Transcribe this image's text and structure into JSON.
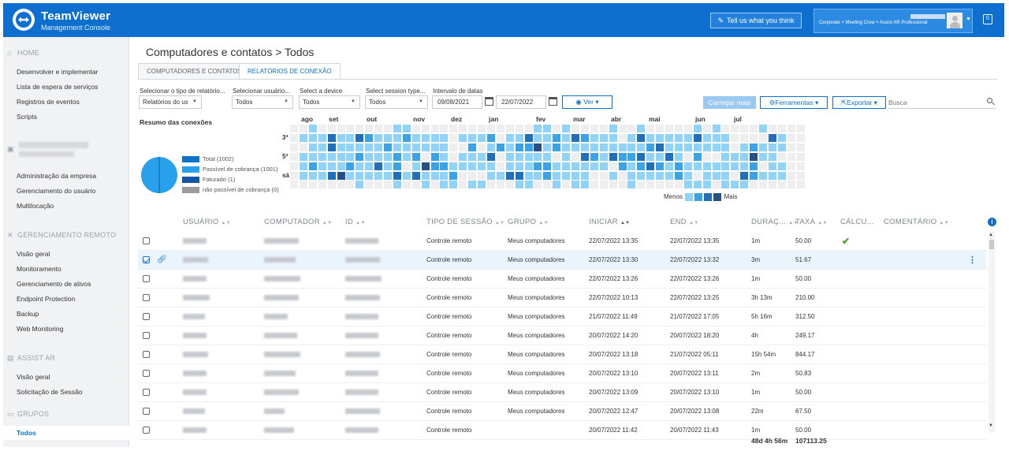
{
  "header": {
    "brand": "TeamViewer",
    "brand_sub": "Management Console",
    "feedback_label": "Tell us what you think",
    "account_plan": "Corporate + Meeting Crew + Assist AR Professional",
    "notifications_count": "0"
  },
  "sidebar": {
    "home": {
      "title": "HOME",
      "items": [
        "Desenvolver e implementar",
        "Lista de espera de serviços",
        "Registros de eventos",
        "Scripts"
      ]
    },
    "company": {
      "items": [
        "Administração da empresa",
        "Gerenciamento do usuário",
        "Multilocação"
      ]
    },
    "remote": {
      "title": "GERENCIAMENTO REMOTO",
      "items": [
        "Visão geral",
        "Monitoramento",
        "Gerenciamento de ativos",
        "Endpoint Protection",
        "Backup",
        "Web Monitoring"
      ]
    },
    "assist": {
      "title": "ASSIST AR",
      "items": [
        "Visão geral",
        "Solicitação de Sessão"
      ]
    },
    "groups": {
      "title": "GRUPOS",
      "items": [
        "Todos"
      ]
    }
  },
  "main": {
    "title": "Computadores e contatos > Todos",
    "tabs": [
      "COMPUTADORES E CONTATOS",
      "RELATÓRIOS DE CONEXÃO"
    ],
    "filters": {
      "report_type_label": "Selecionar o tipo de relatório...",
      "report_type_value": "Relatórios do us",
      "user_label": "Selecionar usuário...",
      "user_value": "Todos",
      "device_label": "Select a device",
      "device_value": "Todos",
      "session_label": "Select session type...",
      "session_value": "Todos",
      "date_label": "Intervalo de datas",
      "date_from": "09/08/2021",
      "date_to": "22/07/2022",
      "ver_label": "Ver",
      "load_more_label": "Carregar mais",
      "tools_label": "Ferramentas",
      "export_label": "Exportar",
      "search_placeholder": "Busca"
    },
    "summary": {
      "title": "Resumo das conexões",
      "legend": [
        {
          "label": "Total (1002)",
          "color": "#0e73c6"
        },
        {
          "label": "Passível de cobrança (1001)",
          "color": "#28a0ec"
        },
        {
          "label": "Faturado (1)",
          "color": "#1256a8"
        },
        {
          "label": "não passível de cobrança (0)",
          "color": "#9b9b9b"
        }
      ],
      "pie_values": {
        "billable": 1001,
        "invoiced": 1,
        "non_billable": 0
      }
    },
    "heatmap": {
      "months": [
        "ago",
        "set",
        "out",
        "nov",
        "dez",
        "jan",
        "fev",
        "mar",
        "abr",
        "mai",
        "jun",
        "jul"
      ],
      "day_labels": [
        "3ª",
        "5ª",
        "sá"
      ],
      "legend_less": "Menos",
      "legend_more": "Mais",
      "colors": [
        "#eeeeee",
        "#8fd3f8",
        "#3aa3e6",
        "#1f6fba",
        "#264f86"
      ]
    },
    "table": {
      "headers": [
        "USUÁRIO",
        "COMPUTADOR",
        "ID",
        "TIPO DE SESSÃO",
        "GRUPO",
        "INICIAR",
        "END",
        "DURAÇ...",
        "TAXA",
        "CÁLCU...",
        "COMENTÁRIO"
      ],
      "rows": [
        {
          "type": "Controle remoto",
          "group": "Meus computadores",
          "start": "22/07/2022 13:35",
          "end": "22/07/2022 13:35",
          "duration": "1m",
          "rate": "50.00"
        },
        {
          "type": "Controle remoto",
          "group": "Meus computadores",
          "start": "22/07/2022 13:30",
          "end": "22/07/2022 13:32",
          "duration": "3m",
          "rate": "51.67"
        },
        {
          "type": "Controle remoto",
          "group": "Meus computadores",
          "start": "22/07/2022 13:26",
          "end": "22/07/2022 13:26",
          "duration": "1m",
          "rate": "50.00"
        },
        {
          "type": "Controle remoto",
          "group": "Meus computadores",
          "start": "22/07/2022 10:13",
          "end": "22/07/2022 13:25",
          "duration": "3h 13m",
          "rate": "210.00"
        },
        {
          "type": "Controle remoto",
          "group": "Meus computadores",
          "start": "21/07/2022 11:49",
          "end": "21/07/2022 17:05",
          "duration": "5h 16m",
          "rate": "312.50"
        },
        {
          "type": "Controle remoto",
          "group": "Meus computadores",
          "start": "20/07/2022 14:20",
          "end": "20/07/2022 18:20",
          "duration": "4h",
          "rate": "249.17"
        },
        {
          "type": "Controle remoto",
          "group": "Meus computadores",
          "start": "20/07/2022 13:18",
          "end": "21/07/2022 05:11",
          "duration": "15h 54m",
          "rate": "844.17"
        },
        {
          "type": "Controle remoto",
          "group": "Meus computadores",
          "start": "20/07/2022 13:10",
          "end": "20/07/2022 13:11",
          "duration": "2m",
          "rate": "50.83"
        },
        {
          "type": "Controle remoto",
          "group": "Meus computadores",
          "start": "20/07/2022 13:09",
          "end": "20/07/2022 13:10",
          "duration": "1m",
          "rate": "50.00"
        },
        {
          "type": "Controle remoto",
          "group": "Meus computadores",
          "start": "20/07/2022 12:47",
          "end": "20/07/2022 13:08",
          "duration": "22m",
          "rate": "67.50"
        },
        {
          "type": "Controle remoto",
          "group": "",
          "start": "20/07/2022 11:42",
          "end": "20/07/2022 11:43",
          "duration": "1m",
          "rate": "50.00"
        }
      ],
      "total_duration": "48d 4h 56m",
      "total_rate": "107113.25"
    }
  }
}
